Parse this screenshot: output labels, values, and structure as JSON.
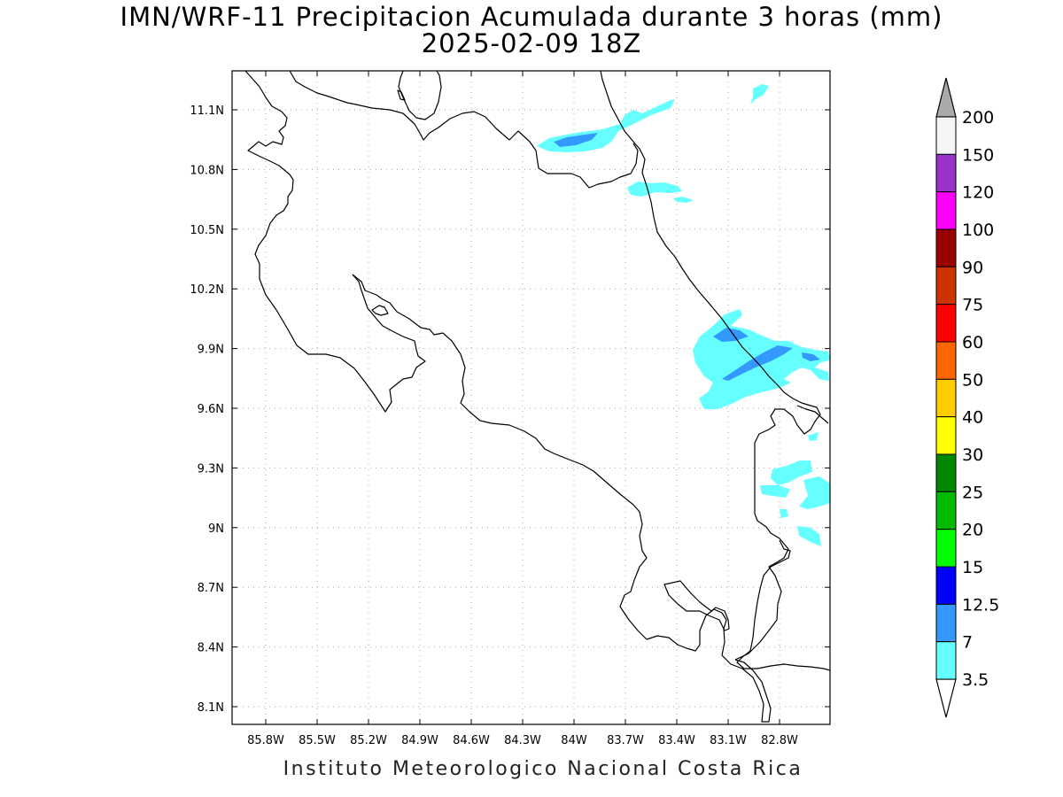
{
  "title": "IMN/WRF-11 Precipitacion Acumulada durante 3 horas (mm)",
  "subtitle": "2025-02-09 18Z",
  "footer": "Instituto Meteorologico Nacional Costa Rica",
  "map": {
    "lon_range": [
      -86.05,
      -82.55
    ],
    "lat_range": [
      8.0,
      11.3
    ],
    "x_ticks": [
      "85.8W",
      "85.5W",
      "85.2W",
      "84.9W",
      "84.6W",
      "84.3W",
      "84W",
      "83.7W",
      "83.4W",
      "83.1W",
      "82.8W"
    ],
    "y_ticks": [
      "11.1N",
      "10.8N",
      "10.5N",
      "10.2N",
      "9.9N",
      "9.6N",
      "9.3N",
      "9N",
      "8.7N",
      "8.4N",
      "8.1N"
    ],
    "grid": "dotted"
  },
  "colorbar": {
    "labels": [
      "200",
      "150",
      "120",
      "100",
      "90",
      "75",
      "60",
      "50",
      "40",
      "30",
      "25",
      "20",
      "15",
      "12.5",
      "7",
      "3.5"
    ],
    "colors": [
      "#aaaaaa",
      "#f5f5f5",
      "#9933cc",
      "#ff00ff",
      "#990000",
      "#cc3300",
      "#ff0000",
      "#ff6600",
      "#ffcc00",
      "#ffff00",
      "#008800",
      "#00bb00",
      "#00ff00",
      "#0000ff",
      "#3399ff",
      "#66ffff"
    ]
  },
  "colors": {
    "light_rain": "#66ffff",
    "moderate_rain": "#3399ff"
  }
}
